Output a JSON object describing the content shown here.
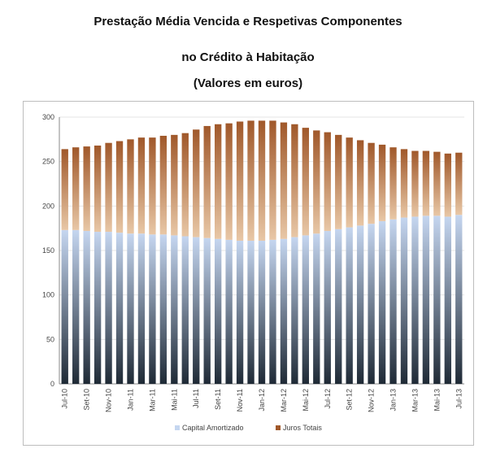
{
  "title": {
    "line1": "Prestação Média Vencida e Respetivas Componentes",
    "line2": "no Crédito à Habitação",
    "line3": "(Valores em euros)"
  },
  "colors": {
    "capital_top": "#c5d6f0",
    "capital_bottom": "#1f2a36",
    "juros_top": "#a0582a",
    "juros_bottom": "#e8c7a6",
    "grid": "#e6e6e6",
    "axis": "#888888"
  },
  "chart_data": {
    "type": "bar",
    "stacked": true,
    "title": "Prestação Média Vencida e Respetivas Componentes no Crédito à Habitação (Valores em euros)",
    "categories": [
      "Jul-10",
      "Ago-10",
      "Set-10",
      "Out-10",
      "Nov-10",
      "Dez-10",
      "Jan-11",
      "Fev-11",
      "Mar-11",
      "Abr-11",
      "Mai-11",
      "Jun-11",
      "Jul-11",
      "Ago-11",
      "Set-11",
      "Out-11",
      "Nov-11",
      "Dez-11",
      "Jan-12",
      "Fev-12",
      "Mar-12",
      "Abr-12",
      "Mai-12",
      "Jun-12",
      "Jul-12",
      "Ago-12",
      "Set-12",
      "Out-12",
      "Nov-12",
      "Dez-12",
      "Jan-13",
      "Fev-13",
      "Mar-13",
      "Abr-13",
      "Mai-13",
      "Jun-13",
      "Jul-13"
    ],
    "tick_labels": [
      "Jul-10",
      "Set-10",
      "Nov-10",
      "Jan-11",
      "Mar-11",
      "Mai-11",
      "Jul-11",
      "Set-11",
      "Nov-11",
      "Jan-12",
      "Mar-12",
      "Mai-12",
      "Jul-12",
      "Set-12",
      "Nov-12",
      "Jan-13",
      "Mar-13",
      "Mai-13",
      "Jul-13"
    ],
    "series": [
      {
        "name": "Capital Amortizado",
        "values": [
          173,
          173,
          172,
          171,
          171,
          170,
          169,
          169,
          168,
          168,
          167,
          166,
          165,
          164,
          163,
          162,
          161,
          161,
          161,
          162,
          163,
          165,
          167,
          169,
          172,
          174,
          176,
          178,
          180,
          183,
          185,
          187,
          188,
          189,
          189,
          188,
          190
        ]
      },
      {
        "name": "Juros Totais",
        "values": [
          91,
          93,
          95,
          97,
          100,
          103,
          106,
          108,
          109,
          111,
          113,
          116,
          121,
          126,
          129,
          131,
          134,
          135,
          135,
          134,
          131,
          127,
          121,
          116,
          111,
          106,
          101,
          96,
          91,
          86,
          81,
          77,
          74,
          73,
          72,
          71,
          70
        ]
      }
    ],
    "ylim": [
      0,
      300
    ],
    "yticks": [
      0,
      50,
      100,
      150,
      200,
      250,
      300
    ],
    "grid": true,
    "legend": "bottom"
  }
}
